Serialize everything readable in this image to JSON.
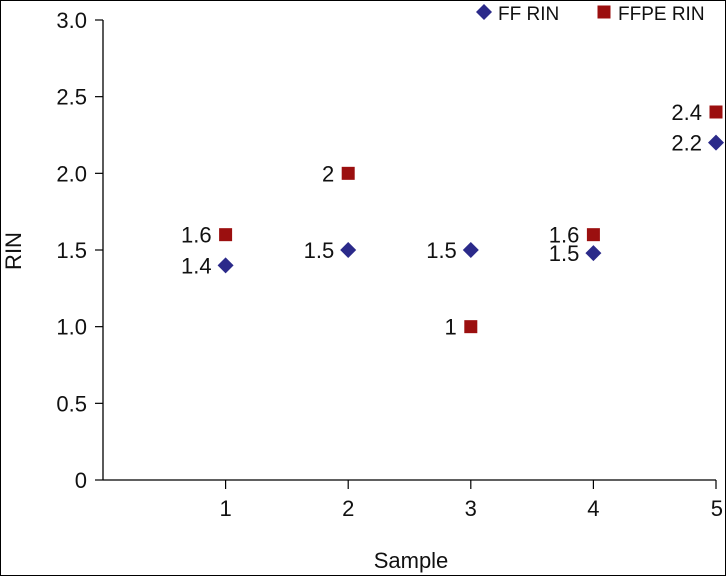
{
  "chart_data": {
    "type": "scatter",
    "title": "",
    "xlabel": "Sample",
    "ylabel": "RIN",
    "x": [
      1,
      2,
      3,
      4,
      5
    ],
    "x_tick_labels": [
      "1",
      "2",
      "3",
      "4",
      "5"
    ],
    "y_tick_labels": [
      "0",
      "0.5",
      "1.0",
      "1.5",
      "2.0",
      "2.5",
      "3.0"
    ],
    "y_ticks": [
      0,
      0.5,
      1.0,
      1.5,
      2.0,
      2.5,
      3.0
    ],
    "xlim": [
      0,
      5
    ],
    "ylim": [
      0,
      3.0
    ],
    "grid": false,
    "legend_position": "top-right",
    "series": [
      {
        "name": "FF RIN",
        "marker": "diamond",
        "color": "#2b2a8a",
        "values": [
          1.4,
          1.5,
          1.5,
          1.48,
          2.2
        ],
        "labels": [
          "1.4",
          "1.5",
          "1.5",
          "1.5",
          "2.2"
        ]
      },
      {
        "name": "FFPE RIN",
        "marker": "square",
        "color": "#9b0f0f",
        "values": [
          1.6,
          2.0,
          1.0,
          1.6,
          2.4
        ],
        "labels": [
          "1.6",
          "2",
          "1",
          "1.6",
          "2.4"
        ]
      }
    ]
  }
}
